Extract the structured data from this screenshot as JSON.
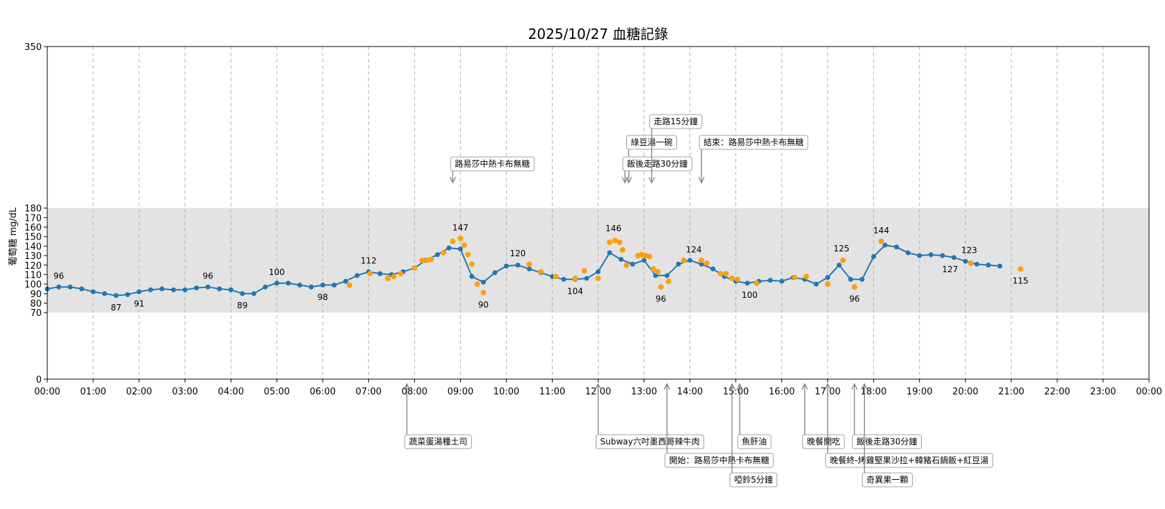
{
  "chart_data": {
    "type": "line",
    "title": "2025/10/27 血糖記錄",
    "xlabel": "",
    "ylabel": "葡萄糖 mg/dL",
    "xlim": [
      "00:00",
      "24:00"
    ],
    "ylim": [
      0,
      350
    ],
    "grid": "vertical dashed lines every hour",
    "target_range": [
      70,
      180
    ],
    "x_ticks": [
      "00:00",
      "01:00",
      "02:00",
      "03:00",
      "04:00",
      "05:00",
      "06:00",
      "07:00",
      "08:00",
      "09:00",
      "10:00",
      "11:00",
      "12:00",
      "13:00",
      "14:00",
      "15:00",
      "16:00",
      "17:00",
      "18:00",
      "19:00",
      "20:00",
      "21:00",
      "22:00",
      "23:00",
      "00:00"
    ],
    "y_ticks": [
      0,
      70,
      80,
      90,
      100,
      110,
      120,
      130,
      140,
      150,
      160,
      170,
      180,
      350
    ],
    "colors": {
      "line": "#1f77b4",
      "scatter": "#ff9f0f",
      "range_band": "#e3e3e3",
      "grid": "#b0b0b0",
      "arrow": "#808080",
      "box_border": "#a0a0a0"
    },
    "series": [
      {
        "kind": "line",
        "points": [
          [
            "00:00",
            95
          ],
          [
            "00:15",
            97
          ],
          [
            "00:30",
            97
          ],
          [
            "00:45",
            95
          ],
          [
            "01:00",
            92
          ],
          [
            "01:15",
            90
          ],
          [
            "01:30",
            88
          ],
          [
            "01:45",
            89
          ],
          [
            "02:00",
            92
          ],
          [
            "02:15",
            94
          ],
          [
            "02:30",
            95
          ],
          [
            "02:45",
            94
          ],
          [
            "03:00",
            94
          ],
          [
            "03:15",
            96
          ],
          [
            "03:30",
            97
          ],
          [
            "03:45",
            95
          ],
          [
            "04:00",
            94
          ],
          [
            "04:15",
            90
          ],
          [
            "04:30",
            90
          ],
          [
            "04:45",
            97
          ],
          [
            "05:00",
            101
          ],
          [
            "05:15",
            101
          ],
          [
            "05:30",
            99
          ],
          [
            "05:45",
            97
          ],
          [
            "06:00",
            99
          ],
          [
            "06:15",
            99
          ],
          [
            "06:30",
            103
          ],
          [
            "06:45",
            109
          ],
          [
            "07:00",
            113
          ],
          [
            "07:15",
            111
          ],
          [
            "07:30",
            110
          ],
          [
            "07:45",
            113
          ],
          [
            "08:00",
            117
          ],
          [
            "08:15",
            125
          ],
          [
            "08:30",
            131
          ],
          [
            "08:45",
            138
          ],
          [
            "09:00",
            137
          ],
          [
            "09:15",
            108
          ],
          [
            "09:30",
            102
          ],
          [
            "09:45",
            112
          ],
          [
            "10:00",
            119
          ],
          [
            "10:15",
            120
          ],
          [
            "10:30",
            116
          ],
          [
            "10:45",
            112
          ],
          [
            "11:00",
            108
          ],
          [
            "11:15",
            105
          ],
          [
            "11:30",
            105
          ],
          [
            "11:45",
            106
          ],
          [
            "12:00",
            113
          ],
          [
            "12:15",
            133
          ],
          [
            "12:30",
            126
          ],
          [
            "12:45",
            121
          ],
          [
            "13:00",
            125
          ],
          [
            "13:15",
            109
          ],
          [
            "13:30",
            109
          ],
          [
            "13:45",
            121
          ],
          [
            "14:00",
            125
          ],
          [
            "14:15",
            121
          ],
          [
            "14:30",
            116
          ],
          [
            "14:45",
            108
          ],
          [
            "15:00",
            103
          ],
          [
            "15:15",
            101
          ],
          [
            "15:30",
            103
          ],
          [
            "15:45",
            104
          ],
          [
            "16:00",
            103
          ],
          [
            "16:15",
            107
          ],
          [
            "16:30",
            105
          ],
          [
            "16:45",
            100
          ],
          [
            "17:00",
            107
          ],
          [
            "17:15",
            120
          ],
          [
            "17:30",
            105
          ],
          [
            "17:45",
            105
          ],
          [
            "18:00",
            129
          ],
          [
            "18:15",
            141
          ],
          [
            "18:30",
            139
          ],
          [
            "18:45",
            133
          ],
          [
            "19:00",
            130
          ],
          [
            "19:15",
            131
          ],
          [
            "19:30",
            130
          ],
          [
            "19:45",
            128
          ],
          [
            "20:00",
            124
          ],
          [
            "20:15",
            121
          ],
          [
            "20:30",
            120
          ],
          [
            "20:45",
            119
          ]
        ]
      },
      {
        "kind": "scatter",
        "points": [
          [
            "06:35",
            99
          ],
          [
            "07:02",
            111
          ],
          [
            "07:25",
            106
          ],
          [
            "07:33",
            108
          ],
          [
            "07:42",
            111
          ],
          [
            "08:00",
            117
          ],
          [
            "08:10",
            125
          ],
          [
            "08:17",
            125
          ],
          [
            "08:22",
            126
          ],
          [
            "08:38",
            133
          ],
          [
            "08:50",
            145
          ],
          [
            "09:00",
            148
          ],
          [
            "09:05",
            141
          ],
          [
            "09:10",
            131
          ],
          [
            "09:15",
            121
          ],
          [
            "09:22",
            100
          ],
          [
            "09:30",
            91
          ],
          [
            "10:30",
            121
          ],
          [
            "10:45",
            113
          ],
          [
            "11:05",
            108
          ],
          [
            "11:30",
            106
          ],
          [
            "11:42",
            114
          ],
          [
            "12:00",
            106
          ],
          [
            "12:15",
            144
          ],
          [
            "12:22",
            146
          ],
          [
            "12:28",
            144
          ],
          [
            "12:32",
            136
          ],
          [
            "12:37",
            120
          ],
          [
            "12:52",
            130
          ],
          [
            "12:57",
            131
          ],
          [
            "13:02",
            130
          ],
          [
            "13:07",
            129
          ],
          [
            "13:12",
            116
          ],
          [
            "13:18",
            113
          ],
          [
            "13:22",
            97
          ],
          [
            "13:32",
            103
          ],
          [
            "13:52",
            125
          ],
          [
            "14:15",
            125
          ],
          [
            "14:22",
            122
          ],
          [
            "14:40",
            111
          ],
          [
            "14:47",
            111
          ],
          [
            "14:55",
            106
          ],
          [
            "15:02",
            105
          ],
          [
            "15:27",
            101
          ],
          [
            "16:17",
            107
          ],
          [
            "16:32",
            108
          ],
          [
            "17:00",
            100
          ],
          [
            "17:20",
            125
          ],
          [
            "17:35",
            97
          ],
          [
            "18:10",
            145
          ],
          [
            "20:07",
            122
          ],
          [
            "21:12",
            116
          ]
        ]
      }
    ],
    "value_labels": [
      {
        "x": "00:15",
        "y": 96,
        "text": "96",
        "pos": "above"
      },
      {
        "x": "01:30",
        "y": 87,
        "text": "87",
        "pos": "below"
      },
      {
        "x": "02:00",
        "y": 91,
        "text": "91",
        "pos": "below"
      },
      {
        "x": "03:30",
        "y": 96,
        "text": "96",
        "pos": "above"
      },
      {
        "x": "04:15",
        "y": 89,
        "text": "89",
        "pos": "below"
      },
      {
        "x": "05:00",
        "y": 100,
        "text": "100",
        "pos": "above"
      },
      {
        "x": "06:00",
        "y": 98,
        "text": "98",
        "pos": "below"
      },
      {
        "x": "07:00",
        "y": 112,
        "text": "112",
        "pos": "above"
      },
      {
        "x": "09:00",
        "y": 147,
        "text": "147",
        "pos": "above"
      },
      {
        "x": "09:30",
        "y": 90,
        "text": "90",
        "pos": "below"
      },
      {
        "x": "10:15",
        "y": 120,
        "text": "120",
        "pos": "above"
      },
      {
        "x": "11:30",
        "y": 104,
        "text": "104",
        "pos": "below"
      },
      {
        "x": "12:20",
        "y": 146,
        "text": "146",
        "pos": "above"
      },
      {
        "x": "13:22",
        "y": 96,
        "text": "96",
        "pos": "below"
      },
      {
        "x": "14:05",
        "y": 124,
        "text": "124",
        "pos": "above"
      },
      {
        "x": "15:18",
        "y": 100,
        "text": "100",
        "pos": "below"
      },
      {
        "x": "17:18",
        "y": 125,
        "text": "125",
        "pos": "above"
      },
      {
        "x": "17:35",
        "y": 96,
        "text": "96",
        "pos": "below"
      },
      {
        "x": "18:10",
        "y": 144,
        "text": "144",
        "pos": "above"
      },
      {
        "x": "20:05",
        "y": 123,
        "text": "123",
        "pos": "above"
      },
      {
        "x": "19:40",
        "y": 127,
        "text": "127",
        "pos": "below"
      },
      {
        "x": "21:12",
        "y": 115,
        "text": "115",
        "pos": "below"
      }
    ],
    "annotations_above": [
      {
        "x": "08:50",
        "text": "路易莎中熱卡布無糖",
        "level": 1
      },
      {
        "x": "12:40",
        "text": "綠豆湯一碗",
        "level": 2
      },
      {
        "x": "12:35",
        "text": "飯後走路30分鐘",
        "level": 1
      },
      {
        "x": "13:10",
        "text": "走路15分鐘",
        "level": 3
      },
      {
        "x": "14:15",
        "text": "結束：路易莎中熱卡布無糖",
        "level": 2
      }
    ],
    "annotations_below": [
      {
        "x": "07:50",
        "text": "蔬菜蛋湯種土司",
        "level": 1
      },
      {
        "x": "12:00",
        "text": "Subway六吋墨西哥辣牛肉",
        "level": 1
      },
      {
        "x": "13:30",
        "text": "開始：路易莎中熱卡布無糖",
        "level": 2
      },
      {
        "x": "14:55",
        "text": "啞鈴5分鐘",
        "level": 3
      },
      {
        "x": "15:05",
        "text": "魚肝油",
        "level": 1
      },
      {
        "x": "16:30",
        "text": "晚餐開吃",
        "level": 1
      },
      {
        "x": "17:00",
        "text": "晚餐終-烤雞堅果沙拉+韓豬石鍋飯+紅豆湯",
        "level": 2
      },
      {
        "x": "17:35",
        "text": "飯後走路30分鐘",
        "level": 1
      },
      {
        "x": "17:48",
        "text": "奇異果一顆",
        "level": 3
      }
    ]
  }
}
